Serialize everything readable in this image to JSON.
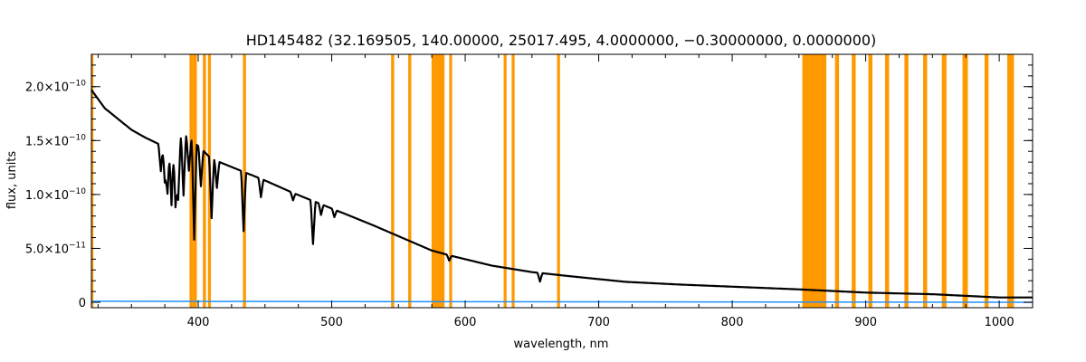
{
  "chart_data": {
    "type": "line",
    "title": "HD145482   (32.169505, 140.00000, 25017.495, 4.0000000, −0.30000000, 0.0000000)",
    "xlabel": "wavelength, nm",
    "ylabel": "flux, units",
    "xlim": [
      320,
      1025
    ],
    "ylim": [
      -5e-12,
      2.3e-10
    ],
    "x_ticks": [
      400,
      500,
      600,
      700,
      800,
      900,
      1000
    ],
    "x_tick_labels": [
      "400",
      "500",
      "600",
      "700",
      "800",
      "900",
      "1000"
    ],
    "y_ticks": [
      {
        "value": 0,
        "mantissa": "0",
        "exponent": ""
      },
      {
        "value": 5e-11,
        "mantissa": "5.0×10",
        "exponent": "−11"
      },
      {
        "value": 1e-10,
        "mantissa": "1.0×10",
        "exponent": "−10"
      },
      {
        "value": 1.5e-10,
        "mantissa": "1.5×10",
        "exponent": "−10"
      },
      {
        "value": 2e-10,
        "mantissa": "2.0×10",
        "exponent": "−10"
      }
    ],
    "grid": false,
    "colors": {
      "spectrum": "#000000",
      "error": "#1e90ff",
      "mask": "#ff9900",
      "axes": "#000000"
    },
    "series": [
      {
        "role": "spectrum",
        "x": [
          320,
          330,
          340,
          350,
          360,
          370,
          380,
          390,
          400,
          410,
          420,
          430,
          440,
          450,
          470,
          500,
          530,
          560,
          575,
          590,
          620,
          650,
          680,
          720,
          760,
          800,
          850,
          900,
          950,
          1000,
          1025
        ],
        "y": [
          1.97e-10,
          1.8e-10,
          1.7e-10,
          1.6e-10,
          1.53e-10,
          1.47e-10,
          1.45e-10,
          1.55e-10,
          1.45e-10,
          1.33e-10,
          1.28e-10,
          1.23e-10,
          1.18e-10,
          1.13e-10,
          1.02e-10,
          8.7e-11,
          7.2e-11,
          5.6e-11,
          4.8e-11,
          4.3e-11,
          3.4e-11,
          2.8e-11,
          2.4e-11,
          1.9e-11,
          1.65e-11,
          1.45e-11,
          1.2e-11,
          9e-12,
          7.5e-12,
          4.5e-12,
          4.5e-12
        ]
      },
      {
        "role": "error",
        "x": [
          320,
          1025
        ],
        "y": [
          1e-12,
          0.0
        ]
      }
    ],
    "absorption_lines": [
      {
        "x": 372,
        "depth": 2.5e-11
      },
      {
        "x": 375,
        "depth": 3.5e-11
      },
      {
        "x": 377,
        "depth": 4.5e-11
      },
      {
        "x": 380,
        "depth": 5.5e-11
      },
      {
        "x": 383,
        "depth": 6e-11
      },
      {
        "x": 385,
        "depth": 5.5e-11
      },
      {
        "x": 389,
        "depth": 5.5e-11
      },
      {
        "x": 393,
        "depth": 3e-11
      },
      {
        "x": 397,
        "depth": 9e-11
      },
      {
        "x": 402,
        "depth": 3.5e-11
      },
      {
        "x": 410,
        "depth": 5.5e-11
      },
      {
        "x": 414,
        "depth": 2.5e-11
      },
      {
        "x": 434,
        "depth": 5.5e-11
      },
      {
        "x": 447,
        "depth": 1.7e-11
      },
      {
        "x": 471,
        "depth": 7e-12
      },
      {
        "x": 486,
        "depth": 4e-11
      },
      {
        "x": 492,
        "depth": 1e-11
      },
      {
        "x": 502,
        "depth": 7e-12
      },
      {
        "x": 588,
        "depth": 5e-12
      },
      {
        "x": 656,
        "depth": 8e-12
      }
    ],
    "masked_regions": [
      [
        319.5,
        321.5
      ],
      [
        393.5,
        396.5
      ],
      [
        396.5,
        399.0
      ],
      [
        403.5,
        405.8
      ],
      [
        407.3,
        409.5
      ],
      [
        433.5,
        435.8
      ],
      [
        544.5,
        546.8
      ],
      [
        557.3,
        559.6
      ],
      [
        574.8,
        584.5
      ],
      [
        588.0,
        590.2
      ],
      [
        628.8,
        631.0
      ],
      [
        634.8,
        637.0
      ],
      [
        668.8,
        671.0
      ],
      [
        852.5,
        870.5
      ],
      [
        877.0,
        880.0
      ],
      [
        889.5,
        892.5
      ],
      [
        902.0,
        905.0
      ],
      [
        914.5,
        917.5
      ],
      [
        929.0,
        932.0
      ],
      [
        943.0,
        946.0
      ],
      [
        957.0,
        960.5
      ],
      [
        972.5,
        976.5
      ],
      [
        989.0,
        992.0
      ],
      [
        1006.0,
        1011.0
      ]
    ]
  }
}
